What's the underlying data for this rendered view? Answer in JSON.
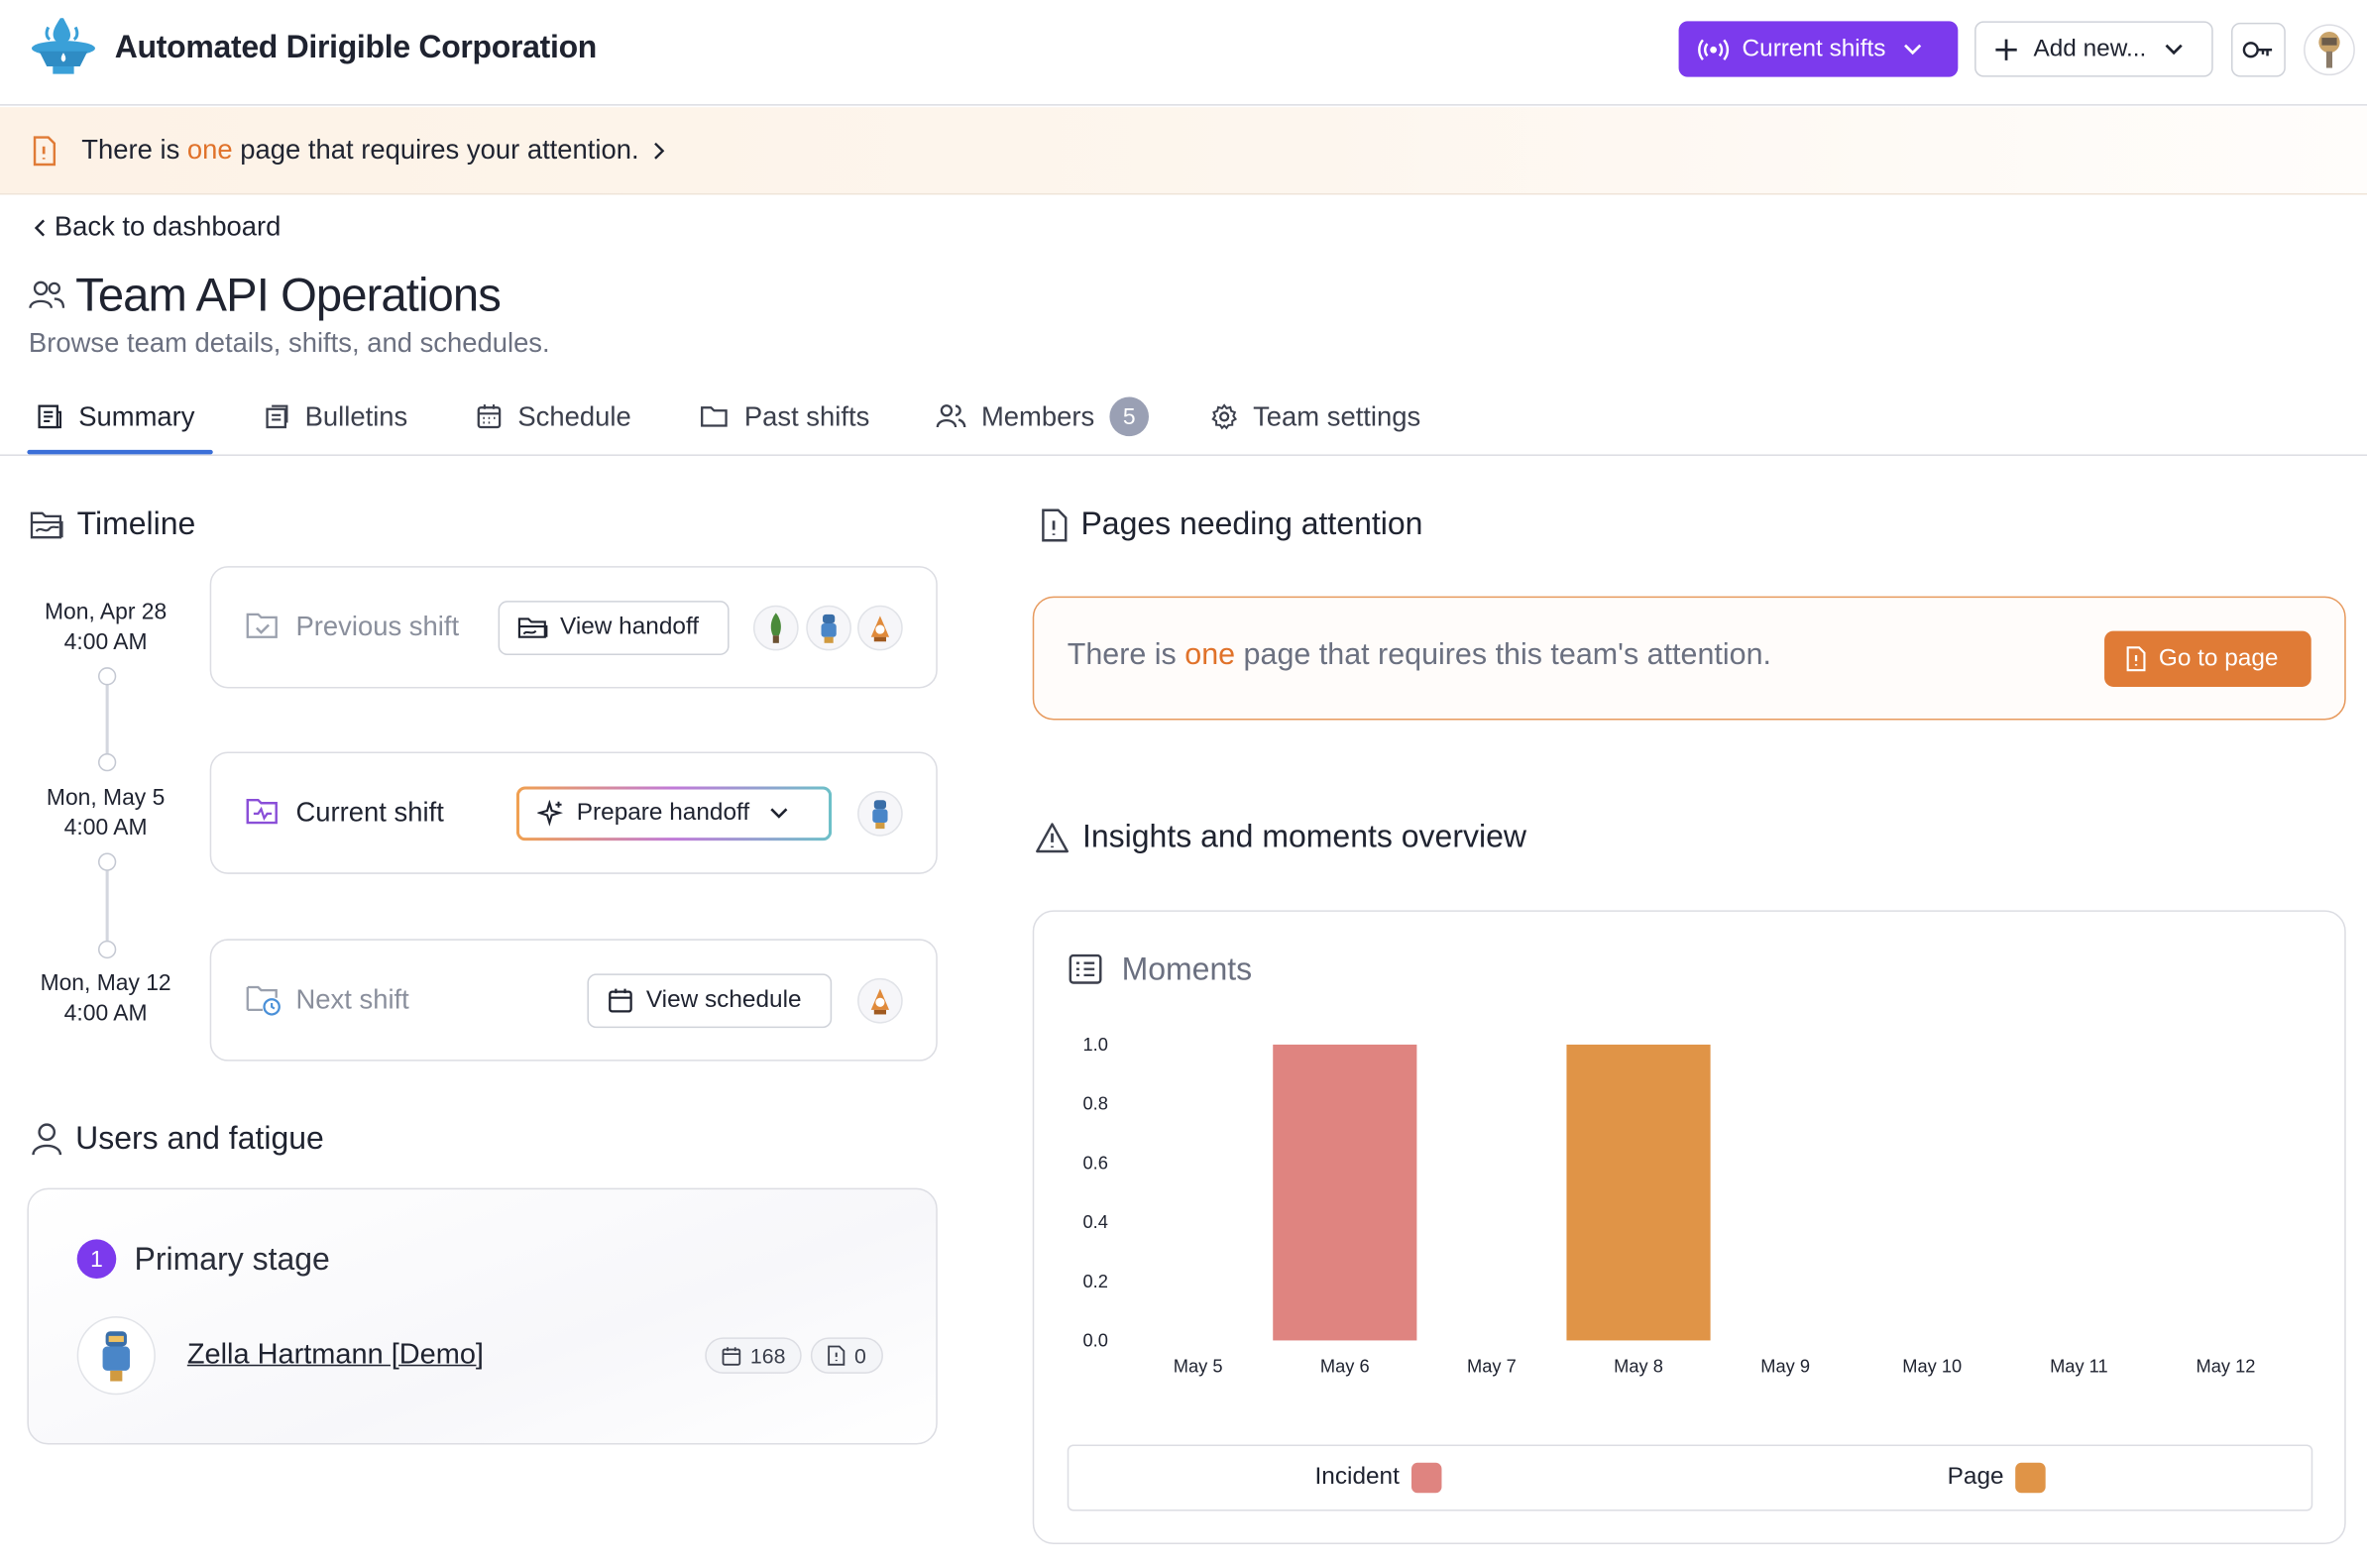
{
  "header": {
    "company": "Automated Dirigible Corporation",
    "current_shifts_label": "Current shifts",
    "add_new_label": "Add new...",
    "accent_color": "#7c3aed"
  },
  "banner": {
    "prefix": "There is ",
    "highlight": "one",
    "suffix": " page that requires your attention."
  },
  "page": {
    "back_label": "Back to dashboard",
    "title": "Team API Operations",
    "subtitle": "Browse team details, shifts, and schedules."
  },
  "tabs": [
    {
      "label": "Summary",
      "icon": "summary-icon",
      "active": true
    },
    {
      "label": "Bulletins",
      "icon": "bulletins-icon"
    },
    {
      "label": "Schedule",
      "icon": "calendar-icon"
    },
    {
      "label": "Past shifts",
      "icon": "folder-icon"
    },
    {
      "label": "Members",
      "icon": "users-icon",
      "count": "5"
    },
    {
      "label": "Team settings",
      "icon": "gear-icon"
    }
  ],
  "timeline": {
    "title": "Timeline",
    "shifts": [
      {
        "date": "Mon, Apr 28",
        "time": "4:00 AM",
        "label": "Previous shift",
        "button": "View handoff"
      },
      {
        "date": "Mon, May 5",
        "time": "4:00 AM",
        "label": "Current shift",
        "button": "Prepare handoff"
      },
      {
        "date": "Mon, May 12",
        "time": "4:00 AM",
        "label": "Next shift",
        "button": "View schedule"
      }
    ]
  },
  "fatigue": {
    "title": "Users and fatigue",
    "stage_number": "1",
    "stage_label": "Primary stage",
    "user_name": "Zella Hartmann [Demo]",
    "shifts_count": "168",
    "pages_count": "0"
  },
  "attention": {
    "title": "Pages needing attention",
    "prefix": "There is ",
    "highlight": "one",
    "suffix": " page that requires this team's attention.",
    "button": "Go to page",
    "accent_color": "#e07b36"
  },
  "insights": {
    "title": "Insights and moments overview",
    "chart_title": "Moments"
  },
  "chart_data": {
    "type": "bar",
    "title": "Moments",
    "categories": [
      "May 5",
      "May 6",
      "May 7",
      "May 8",
      "May 9",
      "May 10",
      "May 11",
      "May 12"
    ],
    "series": [
      {
        "name": "Incident",
        "color": "#df8480",
        "values": [
          0,
          1,
          0,
          0,
          0,
          0,
          0,
          0
        ]
      },
      {
        "name": "Page",
        "color": "#e09447",
        "values": [
          0,
          0,
          0,
          1,
          0,
          0,
          0,
          0
        ]
      }
    ],
    "yticks": [
      "1.0",
      "0.8",
      "0.6",
      "0.4",
      "0.2",
      "0.0"
    ],
    "ylim": [
      0,
      1
    ],
    "grid": false,
    "legend": "bottom"
  }
}
